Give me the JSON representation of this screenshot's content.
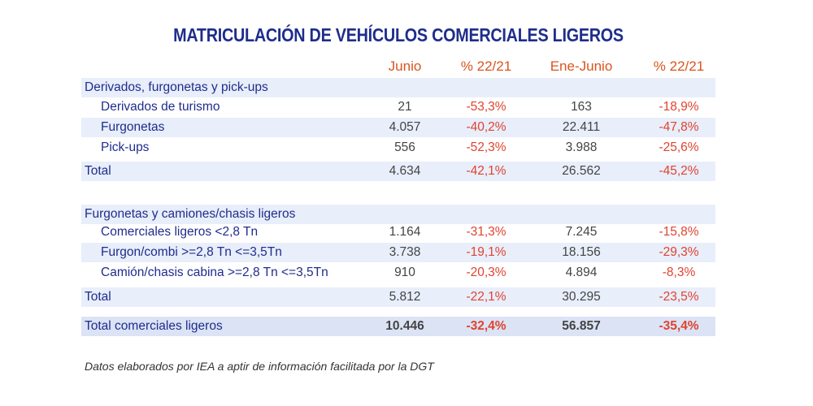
{
  "title": "MATRICULACIÓN DE VEHÍCULOS COMERCIALES LIGEROS",
  "columns": [
    "Junio",
    "% 22/21",
    "Ene-Junio",
    "% 22/21"
  ],
  "section1": {
    "heading": "Derivados, furgonetas y pick-ups",
    "rows": [
      {
        "label": "Derivados de turismo",
        "junio": "21",
        "pct1": "-53,3%",
        "ene_junio": "163",
        "pct2": "-18,9%"
      },
      {
        "label": "Furgonetas",
        "junio": "4.057",
        "pct1": "-40,2%",
        "ene_junio": "22.411",
        "pct2": "-47,8%"
      },
      {
        "label": "Pick-ups",
        "junio": "556",
        "pct1": "-52,3%",
        "ene_junio": "3.988",
        "pct2": "-25,6%"
      }
    ],
    "total": {
      "label": "Total",
      "junio": "4.634",
      "pct1": "-42,1%",
      "ene_junio": "26.562",
      "pct2": "-45,2%"
    }
  },
  "section2": {
    "heading": "Furgonetas y camiones/chasis ligeros",
    "rows": [
      {
        "label": "Comerciales ligeros <2,8 Tn",
        "junio": "1.164",
        "pct1": "-31,3%",
        "ene_junio": "7.245",
        "pct2": "-15,8%"
      },
      {
        "label": "Furgon/combi >=2,8 Tn <=3,5Tn",
        "junio": "3.738",
        "pct1": "-19,1%",
        "ene_junio": "18.156",
        "pct2": "-29,3%"
      },
      {
        "label": "Camión/chasis cabina >=2,8 Tn <=3,5Tn",
        "junio": "910",
        "pct1": "-20,3%",
        "ene_junio": "4.894",
        "pct2": "-8,3%"
      }
    ],
    "total": {
      "label": "Total",
      "junio": "5.812",
      "pct1": "-22,1%",
      "ene_junio": "30.295",
      "pct2": "-23,5%"
    }
  },
  "grand_total": {
    "label": "Total comerciales ligeros",
    "junio": "10.446",
    "pct1": "-32,4%",
    "ene_junio": "56.857",
    "pct2": "-35,4%"
  },
  "footnote": "Datos elaborados por  IEA a aptir de información facilitada por la DGT",
  "colors": {
    "title": "#1f2d8c",
    "header": "#d9541e",
    "negative": "#e0432f",
    "band": "#e8eefa"
  }
}
